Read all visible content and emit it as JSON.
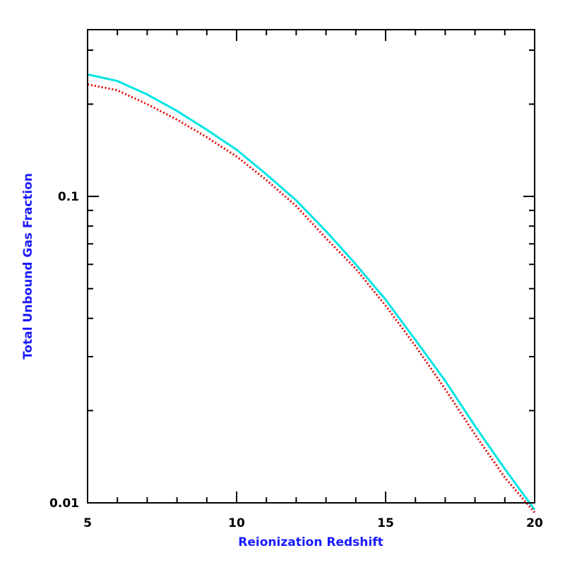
{
  "chart_data": {
    "type": "line",
    "title": "",
    "xlabel": "Reionization Redshift",
    "ylabel": "Total Unbound Gas Fraction",
    "xlim": [
      5,
      20
    ],
    "ylim": [
      0.01,
      0.35
    ],
    "y_scale": "log",
    "grid": false,
    "x_ticks": [
      "5",
      "10",
      "15",
      "20"
    ],
    "y_ticks": [
      "0.01",
      "0.1"
    ],
    "series": [
      {
        "style": "solid",
        "color": "#00e5e5",
        "x": [
          5,
          6,
          7,
          8,
          9,
          10,
          11,
          12,
          13,
          14,
          15,
          16,
          17,
          18,
          19,
          20
        ],
        "y": [
          0.25,
          0.238,
          0.215,
          0.19,
          0.165,
          0.142,
          0.118,
          0.097,
          0.077,
          0.06,
          0.046,
          0.034,
          0.025,
          0.0178,
          0.0129,
          0.0095
        ]
      },
      {
        "style": "dotted",
        "color": "#e60000",
        "x": [
          5,
          6,
          7,
          8,
          9,
          10,
          11,
          12,
          13,
          14,
          15,
          16,
          17,
          18,
          19,
          20
        ],
        "y": [
          0.232,
          0.222,
          0.2,
          0.178,
          0.156,
          0.135,
          0.113,
          0.093,
          0.073,
          0.058,
          0.044,
          0.0325,
          0.0235,
          0.0167,
          0.0121,
          0.0093
        ]
      }
    ]
  }
}
